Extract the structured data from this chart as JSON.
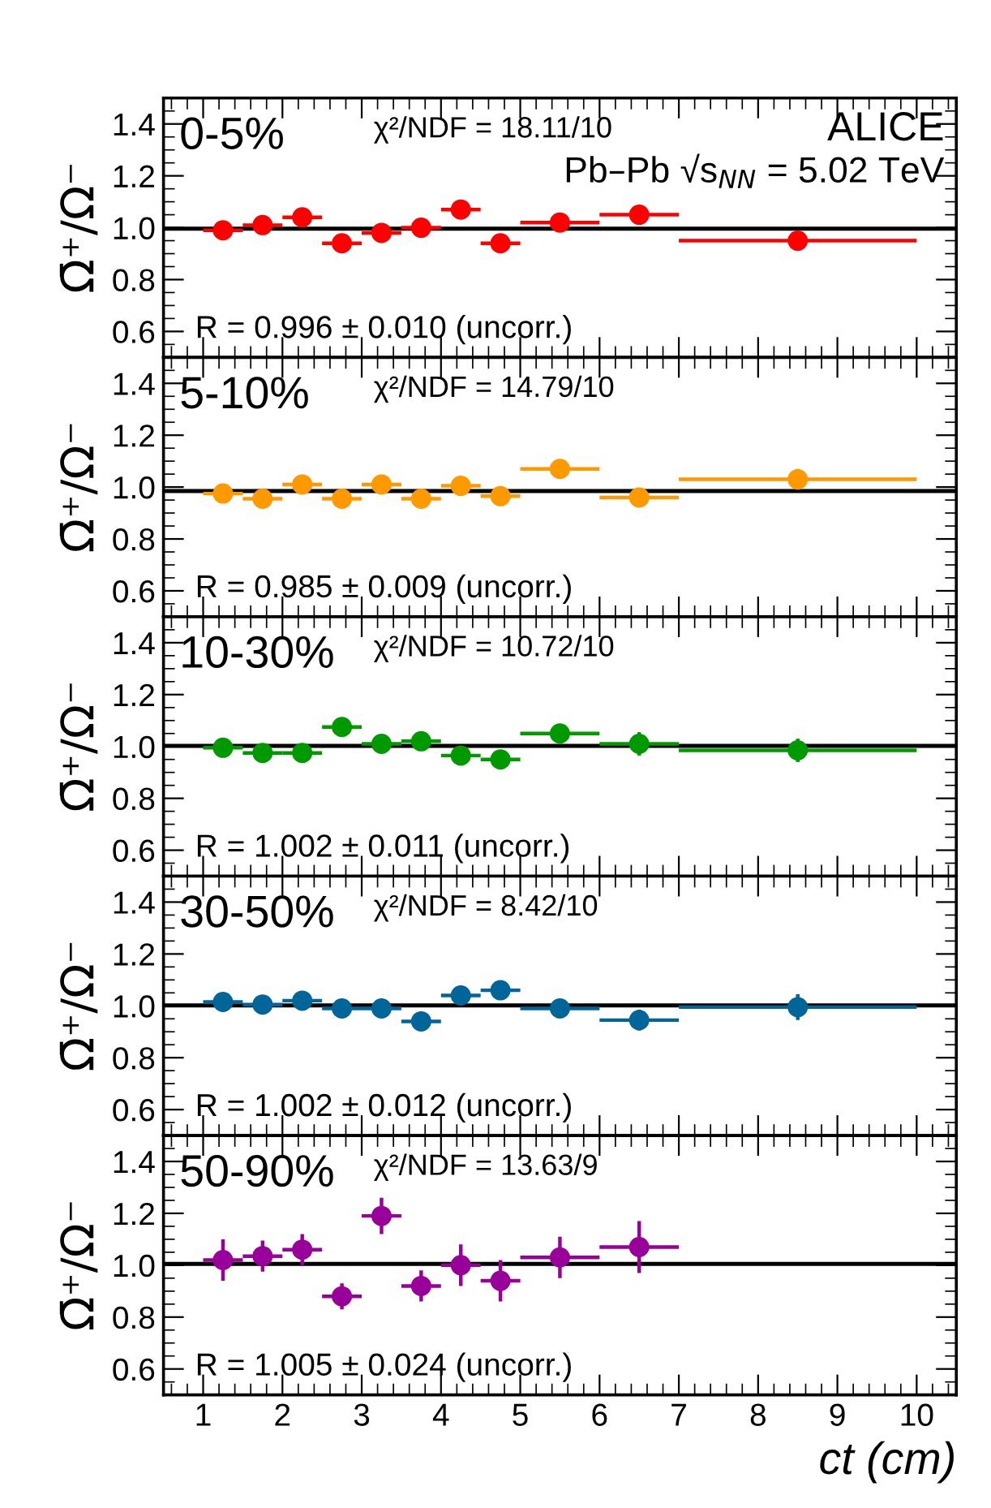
{
  "chart_data": [
    {
      "type": "scatter",
      "title": "0-5%",
      "ylabel": "Ω̄⁺/Ω⁻",
      "marker": "circle",
      "tick_labels": "y",
      "grid": false,
      "x": [
        1.25,
        1.75,
        2.25,
        2.75,
        3.25,
        3.75,
        4.25,
        4.75,
        5.5,
        6.5,
        8.5
      ],
      "series": [
        {
          "color": "#ff0000",
          "values": [
            0.99,
            1.01,
            1.04,
            0.94,
            0.98,
            1.0,
            1.07,
            0.94,
            1.02,
            1.05,
            0.95
          ],
          "errors": [
            0.015,
            0.015,
            0.015,
            0.015,
            0.015,
            0.015,
            0.02,
            0.02,
            0.02,
            0.03,
            0.03
          ],
          "xerrors": [
            0.25,
            0.25,
            0.25,
            0.25,
            0.25,
            0.25,
            0.25,
            0.25,
            0.5,
            0.5,
            1.5
          ]
        }
      ],
      "xlim": [
        0.5,
        10.5
      ],
      "ylim": [
        0.5,
        1.5
      ],
      "xticks": [
        1,
        2,
        3,
        4,
        5,
        6,
        7,
        8,
        9,
        10
      ],
      "yticks": [
        {
          "value": 0.6,
          "label": "0.6"
        },
        {
          "value": 0.8,
          "label": "0.8"
        },
        {
          "value": 1.0,
          "label": "1.0"
        },
        {
          "value": 1.2,
          "label": "1.2"
        },
        {
          "value": 1.4,
          "label": "1.4"
        }
      ],
      "ref_lines": [
        {
          "axis": "y",
          "value": 0.996,
          "color": "#000000"
        }
      ],
      "annotations": [
        "χ²/NDF = 18.11/10",
        "R = 0.996 ± 0.010 (uncorr.)",
        "ALICE",
        "Pb–Pb √s$_{NN}$ = 5.02 TeV"
      ]
    },
    {
      "type": "scatter",
      "title": "5-10%",
      "ylabel": "Ω̄⁺/Ω⁻",
      "marker": "circle",
      "tick_labels": "y",
      "grid": false,
      "x": [
        1.25,
        1.75,
        2.25,
        2.75,
        3.25,
        3.75,
        4.25,
        4.75,
        5.5,
        6.5,
        8.5
      ],
      "series": [
        {
          "color": "#ff9900",
          "values": [
            0.975,
            0.955,
            1.01,
            0.955,
            1.01,
            0.955,
            1.005,
            0.965,
            1.07,
            0.96,
            1.03
          ],
          "errors": [
            0.015,
            0.015,
            0.015,
            0.015,
            0.015,
            0.015,
            0.02,
            0.02,
            0.02,
            0.03,
            0.04
          ],
          "xerrors": [
            0.25,
            0.25,
            0.25,
            0.25,
            0.25,
            0.25,
            0.25,
            0.25,
            0.5,
            0.5,
            1.5
          ]
        }
      ],
      "xlim": [
        0.5,
        10.5
      ],
      "ylim": [
        0.5,
        1.5
      ],
      "xticks": [
        1,
        2,
        3,
        4,
        5,
        6,
        7,
        8,
        9,
        10
      ],
      "yticks": [
        {
          "value": 0.6,
          "label": "0.6"
        },
        {
          "value": 0.8,
          "label": "0.8"
        },
        {
          "value": 1.0,
          "label": "1.0"
        },
        {
          "value": 1.2,
          "label": "1.2"
        },
        {
          "value": 1.4,
          "label": "1.4"
        }
      ],
      "ref_lines": [
        {
          "axis": "y",
          "value": 0.985,
          "color": "#000000"
        }
      ],
      "annotations": [
        "χ²/NDF = 14.79/10",
        "R = 0.985 ± 0.009 (uncorr.)"
      ]
    },
    {
      "type": "scatter",
      "title": "10-30%",
      "ylabel": "Ω̄⁺/Ω⁻",
      "marker": "circle",
      "tick_labels": "y",
      "grid": false,
      "x": [
        1.25,
        1.75,
        2.25,
        2.75,
        3.25,
        3.75,
        4.25,
        4.75,
        5.5,
        6.5,
        8.5
      ],
      "series": [
        {
          "color": "#009900",
          "values": [
            0.995,
            0.975,
            0.975,
            1.075,
            1.01,
            1.02,
            0.965,
            0.95,
            1.05,
            1.01,
            0.985
          ],
          "errors": [
            0.015,
            0.015,
            0.015,
            0.015,
            0.015,
            0.02,
            0.02,
            0.025,
            0.03,
            0.045,
            0.045
          ],
          "xerrors": [
            0.25,
            0.25,
            0.25,
            0.25,
            0.25,
            0.25,
            0.25,
            0.25,
            0.5,
            0.5,
            1.5
          ]
        }
      ],
      "xlim": [
        0.5,
        10.5
      ],
      "ylim": [
        0.5,
        1.5
      ],
      "xticks": [
        1,
        2,
        3,
        4,
        5,
        6,
        7,
        8,
        9,
        10
      ],
      "yticks": [
        {
          "value": 0.6,
          "label": "0.6"
        },
        {
          "value": 0.8,
          "label": "0.8"
        },
        {
          "value": 1.0,
          "label": "1.0"
        },
        {
          "value": 1.2,
          "label": "1.2"
        },
        {
          "value": 1.4,
          "label": "1.4"
        }
      ],
      "ref_lines": [
        {
          "axis": "y",
          "value": 1.002,
          "color": "#000000"
        }
      ],
      "annotations": [
        "χ²/NDF = 10.72/10",
        "R = 1.002 ± 0.011 (uncorr.)"
      ]
    },
    {
      "type": "scatter",
      "title": "30-50%",
      "ylabel": "Ω̄⁺/Ω⁻",
      "marker": "circle",
      "tick_labels": "y",
      "grid": false,
      "x": [
        1.25,
        1.75,
        2.25,
        2.75,
        3.25,
        3.75,
        4.25,
        4.75,
        5.5,
        6.5,
        8.5
      ],
      "series": [
        {
          "color": "#006699",
          "values": [
            1.015,
            1.005,
            1.02,
            0.99,
            0.99,
            0.94,
            1.04,
            1.06,
            0.99,
            0.945,
            0.995
          ],
          "errors": [
            0.015,
            0.015,
            0.015,
            0.015,
            0.015,
            0.015,
            0.03,
            0.03,
            0.03,
            0.04,
            0.05
          ],
          "xerrors": [
            0.25,
            0.25,
            0.25,
            0.25,
            0.25,
            0.25,
            0.25,
            0.25,
            0.5,
            0.5,
            1.5
          ]
        }
      ],
      "xlim": [
        0.5,
        10.5
      ],
      "ylim": [
        0.5,
        1.5
      ],
      "xticks": [
        1,
        2,
        3,
        4,
        5,
        6,
        7,
        8,
        9,
        10
      ],
      "yticks": [
        {
          "value": 0.6,
          "label": "0.6"
        },
        {
          "value": 0.8,
          "label": "0.8"
        },
        {
          "value": 1.0,
          "label": "1.0"
        },
        {
          "value": 1.2,
          "label": "1.2"
        },
        {
          "value": 1.4,
          "label": "1.4"
        }
      ],
      "ref_lines": [
        {
          "axis": "y",
          "value": 1.002,
          "color": "#000000"
        }
      ],
      "annotations": [
        "χ²/NDF = 8.42/10",
        "R = 1.002 ± 0.012 (uncorr.)"
      ]
    },
    {
      "type": "scatter",
      "title": "50-90%",
      "ylabel": "Ω̄⁺/Ω⁻",
      "xlabel": "ct (cm)",
      "marker": "circle",
      "grid": false,
      "x": [
        1.25,
        1.75,
        2.25,
        2.75,
        3.25,
        3.75,
        4.25,
        4.75,
        5.5,
        6.5
      ],
      "series": [
        {
          "color": "#990099",
          "values": [
            1.02,
            1.035,
            1.06,
            0.88,
            1.19,
            0.92,
            1.0,
            0.94,
            1.03,
            1.07
          ],
          "errors": [
            0.08,
            0.06,
            0.06,
            0.05,
            0.07,
            0.06,
            0.08,
            0.08,
            0.08,
            0.1
          ],
          "xerrors": [
            0.25,
            0.25,
            0.25,
            0.25,
            0.25,
            0.25,
            0.25,
            0.25,
            0.5,
            0.5
          ]
        }
      ],
      "xlim": [
        0.5,
        10.5
      ],
      "ylim": [
        0.5,
        1.5
      ],
      "xticks": [
        1,
        2,
        3,
        4,
        5,
        6,
        7,
        8,
        9,
        10
      ],
      "yticks": [
        {
          "value": 0.6,
          "label": "0.6"
        },
        {
          "value": 0.8,
          "label": "0.8"
        },
        {
          "value": 1.0,
          "label": "1.0"
        },
        {
          "value": 1.2,
          "label": "1.2"
        },
        {
          "value": 1.4,
          "label": "1.4"
        }
      ],
      "ref_lines": [
        {
          "axis": "y",
          "value": 1.005,
          "color": "#000000"
        }
      ],
      "annotations": [
        "χ²/NDF = 13.63/9",
        "R = 1.005 ± 0.024 (uncorr.)"
      ]
    }
  ]
}
